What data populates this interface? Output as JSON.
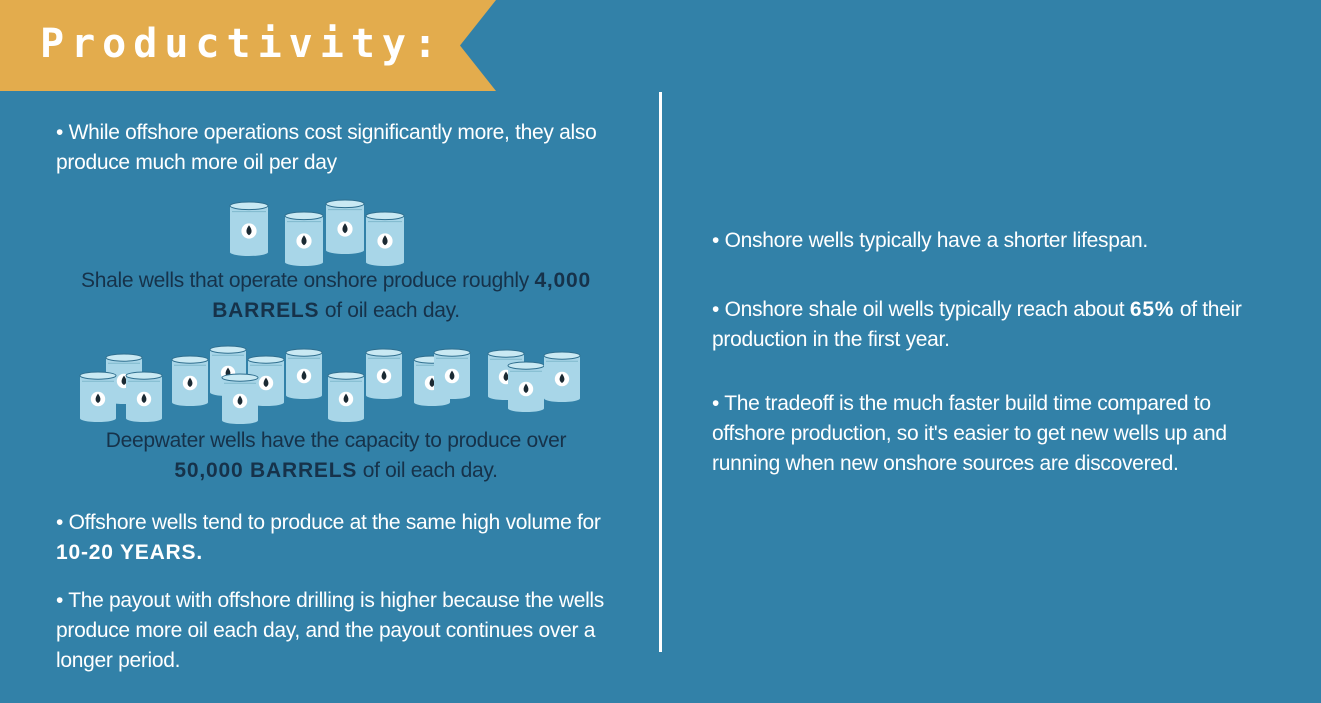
{
  "banner": {
    "title": "Productivity:"
  },
  "colors": {
    "banner": "#E3AC4D",
    "background": "#3281A8",
    "barrel": "#A8D6E8",
    "barrel_dark": "#1B2A33"
  },
  "left": {
    "p1": "• While offshore operations cost significantly more, they also produce much more oil per day",
    "shale": {
      "pre": "Shale wells that operate onshore produce roughly ",
      "bold": "4,000 BARRELS",
      "post": " of oil each day."
    },
    "deepwater": {
      "pre": "Deepwater wells have the capacity to produce over  ",
      "bold": "50,000 BARRELS",
      "post": " of oil each day."
    },
    "p2": {
      "pre": "• Offshore wells tend to produce at the same high volume for ",
      "bold": "10-20 YEARS."
    },
    "p3": "• The payout with offshore drilling is higher because the wells produce more oil each day, and the payout continues over a longer period."
  },
  "right": {
    "p1": "• Onshore wells typically have a shorter lifespan.",
    "p2": {
      "pre": "• Onshore shale oil wells typically reach about ",
      "bold": "65%",
      "post": " of their production in the first year."
    },
    "p3": "• The tradeoff is the much faster build time compared to offshore production, so it's easier to get new wells up and running when new onshore sources are discovered."
  },
  "icons": {
    "barrel": "oil-barrel-icon"
  }
}
